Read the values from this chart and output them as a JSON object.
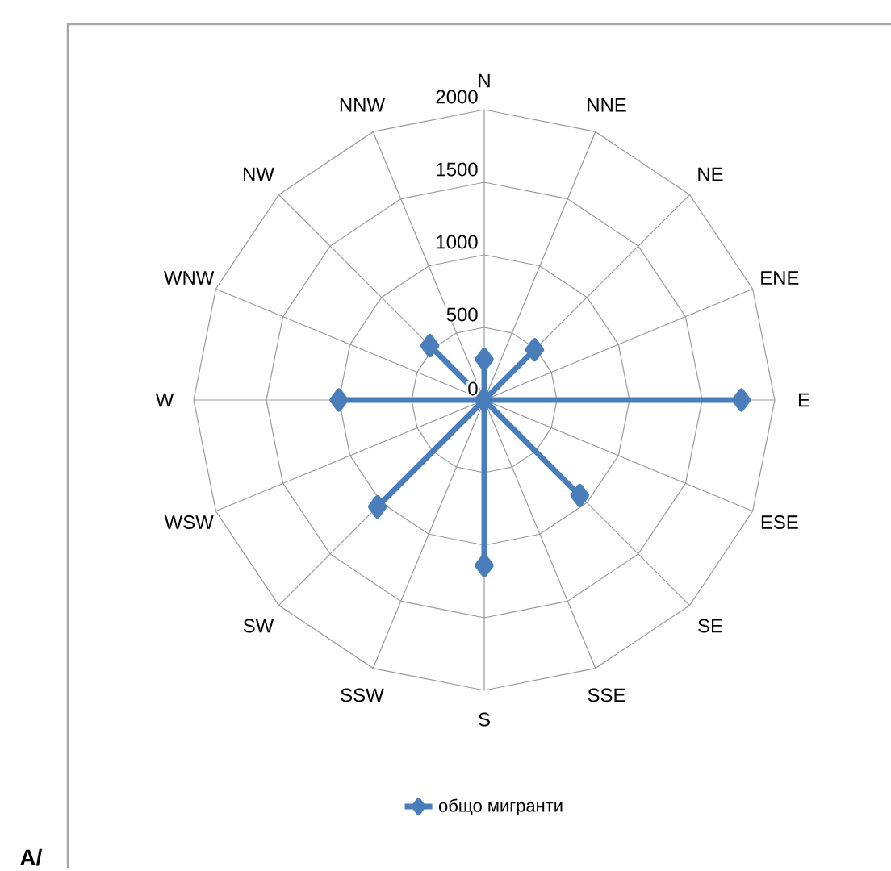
{
  "chart_data": {
    "type": "radar",
    "categories": [
      "N",
      "NNE",
      "NE",
      "ENE",
      "E",
      "ESE",
      "SE",
      "SSE",
      "S",
      "SSW",
      "SW",
      "WSW",
      "W",
      "WNW",
      "NW",
      "NNW"
    ],
    "series": [
      {
        "name": "общо мигранти",
        "color": "#4a7ebb",
        "values": [
          280,
          0,
          490,
          0,
          1770,
          0,
          930,
          0,
          1140,
          0,
          1040,
          0,
          1000,
          0,
          530,
          0
        ]
      }
    ],
    "ylim": [
      0,
      2000
    ],
    "yticks": [
      0,
      500,
      1000,
      1500,
      2000
    ],
    "grid": true,
    "legend": "bottom",
    "marker": "diamond",
    "annotations": [
      "A/"
    ]
  }
}
